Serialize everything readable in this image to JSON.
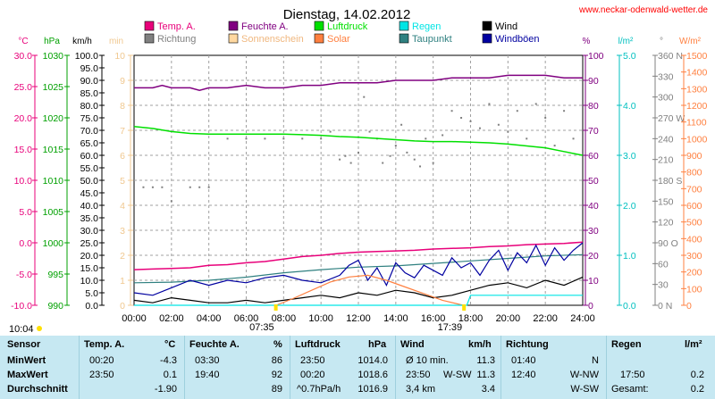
{
  "header": {
    "title": "Dienstag, 14.02.2012",
    "url": "www.neckar-odenwald-wetter.de"
  },
  "legend": [
    {
      "label": "Temp. A.",
      "color": "#e8007a"
    },
    {
      "label": "Feuchte A.",
      "color": "#800080"
    },
    {
      "label": "Luftdruck",
      "color": "#00e000"
    },
    {
      "label": "Regen",
      "color": "#00e5e5"
    },
    {
      "label": "Wind",
      "color": "#000000"
    },
    {
      "label": "Richtung",
      "color": "#808080"
    },
    {
      "label": "Sonnenschein",
      "color": "#ffd8a0"
    },
    {
      "label": "Solar",
      "color": "#ff8040"
    },
    {
      "label": "Taupunkt",
      "color": "#2f8080"
    },
    {
      "label": "Windböen",
      "color": "#0000a0"
    }
  ],
  "chart_data": {
    "type": "line",
    "x_ticks": [
      "00:00",
      "02:00",
      "04:00",
      "06:00",
      "08:00",
      "10:00",
      "12:00",
      "14:00",
      "16:00",
      "18:00",
      "20:00",
      "22:00",
      "24:00"
    ],
    "sunrise": "07:35",
    "sunset": "17:39",
    "daylength": "10:04",
    "axes": {
      "temp": {
        "unit": "°C",
        "color": "#e8007a",
        "ticks": [
          "30.0",
          "25.0",
          "20.0",
          "15.0",
          "10.0",
          "5.0",
          "0.0",
          "-5.0",
          "-10.0"
        ],
        "range": [
          -10,
          30
        ]
      },
      "pressure": {
        "unit": "hPa",
        "color": "#00a000",
        "ticks": [
          "1030",
          "1025",
          "1020",
          "1015",
          "1010",
          "1005",
          "1000",
          "995",
          "990"
        ],
        "range": [
          990,
          1030
        ]
      },
      "wind": {
        "unit": "km/h",
        "color": "#000000",
        "ticks": [
          "100.0",
          "95.0",
          "90.0",
          "85.0",
          "80.0",
          "75.0",
          "70.0",
          "65.0",
          "60.0",
          "55.0",
          "50.0",
          "45.0",
          "40.0",
          "35.0",
          "30.0",
          "25.0",
          "20.0",
          "15.0",
          "10.0",
          "5.0",
          "0.0"
        ],
        "range": [
          0,
          100
        ]
      },
      "sun": {
        "unit": "min",
        "color": "#ffd8a0",
        "ticks": [
          "10",
          "9",
          "8",
          "7",
          "6",
          "5",
          "4",
          "3",
          "2",
          "1",
          "0"
        ],
        "range": [
          0,
          10
        ]
      },
      "humidity": {
        "unit": "%",
        "color": "#800080",
        "ticks": [
          "100",
          "90",
          "80",
          "70",
          "60",
          "50",
          "40",
          "30",
          "20",
          "10",
          "0"
        ],
        "range": [
          0,
          100
        ]
      },
      "rain": {
        "unit": "l/m²",
        "color": "#00c0c0",
        "ticks": [
          "5.0",
          "4.0",
          "3.0",
          "2.0",
          "1.0",
          "0.0"
        ],
        "range": [
          0,
          5
        ]
      },
      "direction": {
        "unit": "°",
        "color": "#808080",
        "ticks": [
          "360 N",
          "330",
          "300",
          "270 W",
          "240",
          "210",
          "180 S",
          "150",
          "120",
          "90 O",
          "60",
          "30",
          "0 N"
        ],
        "range": [
          0,
          360
        ]
      },
      "solar": {
        "unit": "W/m²",
        "color": "#ff8040",
        "ticks": [
          "1500",
          "1400",
          "1300",
          "1200",
          "1100",
          "1000",
          "900",
          "800",
          "700",
          "600",
          "500",
          "400",
          "300",
          "200",
          "100",
          "0"
        ],
        "range": [
          0,
          1500
        ]
      }
    },
    "series": [
      {
        "name": "Feuchte A.",
        "axis": "humidity",
        "color": "#800080",
        "x": [
          0,
          0.5,
          1,
          1.5,
          2,
          2.5,
          3,
          3.5,
          4,
          5,
          6,
          7,
          8,
          9,
          10,
          11,
          12,
          13,
          14,
          15,
          16,
          17,
          18,
          19,
          20,
          21,
          22,
          23,
          24
        ],
        "y": [
          87,
          87,
          87,
          88,
          87,
          87,
          87,
          86,
          87,
          87,
          88,
          87,
          87,
          88,
          88,
          89,
          89,
          89,
          90,
          90,
          90,
          91,
          91,
          91,
          92,
          92,
          92,
          91,
          91
        ]
      },
      {
        "name": "Luftdruck",
        "axis": "pressure",
        "color": "#00e000",
        "x": [
          0,
          1,
          2,
          3,
          4,
          5,
          6,
          7,
          8,
          9,
          10,
          11,
          12,
          13,
          14,
          15,
          16,
          17,
          18,
          19,
          20,
          21,
          22,
          23,
          24
        ],
        "y": [
          1018.6,
          1018.3,
          1017.8,
          1017.5,
          1017.4,
          1017.4,
          1017.4,
          1017.4,
          1017.4,
          1017.3,
          1017.2,
          1017.0,
          1016.9,
          1016.7,
          1016.5,
          1016.3,
          1016.2,
          1016.2,
          1016.1,
          1016.0,
          1015.8,
          1015.5,
          1015.2,
          1014.6,
          1014.0
        ]
      },
      {
        "name": "Temp. A.",
        "axis": "temp",
        "color": "#e8007a",
        "x": [
          0,
          1,
          2,
          3,
          4,
          5,
          6,
          7,
          8,
          9,
          10,
          11,
          12,
          13,
          14,
          15,
          16,
          17,
          18,
          19,
          20,
          21,
          22,
          23,
          24
        ],
        "y": [
          -4.3,
          -4.2,
          -4.1,
          -4.0,
          -3.6,
          -3.5,
          -3.2,
          -3.0,
          -2.6,
          -2.2,
          -2.0,
          -1.7,
          -1.5,
          -1.4,
          -1.3,
          -1.2,
          -1.0,
          -0.9,
          -0.8,
          -0.6,
          -0.5,
          -0.3,
          -0.2,
          -0.1,
          0.1
        ]
      },
      {
        "name": "Taupunkt",
        "axis": "temp",
        "color": "#2f8080",
        "x": [
          0,
          2,
          4,
          6,
          8,
          10,
          12,
          14,
          16,
          18,
          20,
          22,
          24
        ],
        "y": [
          -6.4,
          -6.3,
          -6.0,
          -5.5,
          -4.8,
          -4.3,
          -3.9,
          -3.7,
          -3.3,
          -2.9,
          -2.5,
          -2.1,
          -1.9
        ]
      },
      {
        "name": "Windböen",
        "axis": "wind",
        "color": "#0000a0",
        "x": [
          0,
          1,
          2,
          3,
          4,
          5,
          6,
          7,
          8,
          9,
          10,
          11,
          11.5,
          12,
          12.5,
          13,
          13.5,
          14,
          14.5,
          15,
          15.5,
          16,
          16.5,
          17,
          17.5,
          18,
          18.5,
          19,
          19.5,
          20,
          20.5,
          21,
          21.5,
          22,
          22.5,
          23,
          23.5,
          24
        ],
        "y": [
          5,
          4,
          7,
          10,
          8,
          10,
          9,
          11,
          12,
          10,
          9,
          12,
          16,
          18,
          10,
          15,
          8,
          17,
          13,
          11,
          16,
          14,
          12,
          19,
          15,
          17,
          12,
          18,
          22,
          14,
          21,
          17,
          24,
          16,
          23,
          18,
          22,
          25
        ]
      },
      {
        "name": "Wind",
        "axis": "wind",
        "color": "#000000",
        "x": [
          0,
          1,
          2,
          3,
          4,
          5,
          6,
          7,
          8,
          9,
          10,
          11,
          12,
          13,
          14,
          15,
          16,
          17,
          18,
          19,
          20,
          21,
          22,
          23,
          24
        ],
        "y": [
          2,
          1,
          3,
          2,
          1,
          1,
          2,
          1,
          2,
          3,
          4,
          3,
          5,
          4,
          6,
          5,
          3,
          4,
          6,
          8,
          9,
          7,
          10,
          8,
          11.3
        ]
      },
      {
        "name": "Solar",
        "axis": "solar",
        "color": "#ff8040",
        "x": [
          7.6,
          8.5,
          9.5,
          10.5,
          11.5,
          12.5,
          13.5,
          14.5,
          15.5,
          16.5,
          17.6
        ],
        "y": [
          0,
          40,
          90,
          140,
          170,
          180,
          150,
          110,
          70,
          30,
          0
        ]
      },
      {
        "name": "Regen",
        "axis": "rain",
        "color": "#00e5e5",
        "x": [
          0,
          16.5,
          17.8,
          18,
          24
        ],
        "y": [
          0,
          0,
          0,
          0.2,
          0.2
        ]
      }
    ],
    "direction_points": {
      "x": [
        0,
        0.5,
        1,
        1.5,
        2,
        3,
        3.5,
        4,
        5,
        6,
        7,
        8,
        9,
        10,
        10.5,
        11,
        11.3,
        11.6,
        12,
        12.3,
        12.6,
        13,
        13.3,
        13.7,
        14,
        14.3,
        14.6,
        15,
        15.3,
        15.6,
        16,
        16.5,
        17,
        17.5,
        18,
        18.5,
        19,
        19.5,
        20,
        20.5,
        21,
        21.5,
        22,
        22.5,
        23,
        23.5,
        24
      ],
      "y": [
        170,
        170,
        170,
        170,
        150,
        170,
        170,
        170,
        240,
        240,
        240,
        240,
        240,
        240,
        250,
        210,
        215,
        205,
        220,
        300,
        250,
        240,
        205,
        215,
        230,
        260,
        220,
        210,
        200,
        240,
        205,
        245,
        280,
        270,
        265,
        255,
        290,
        260,
        250,
        280,
        240,
        290,
        270,
        230,
        280,
        240,
        250
      ]
    }
  },
  "stats": {
    "headers": {
      "sensor": "Sensor",
      "temp": "Temp. A.",
      "temp_unit": "°C",
      "hum": "Feuchte A.",
      "hum_unit": "%",
      "press": "Luftdruck",
      "press_unit": "hPa",
      "wind": "Wind",
      "wind_unit": "km/h",
      "dir": "Richtung",
      "rain": "Regen",
      "rain_unit": "l/m²"
    },
    "min": {
      "label": "MinWert",
      "temp_time": "00:20",
      "temp_val": "-4.3",
      "hum_time": "03:30",
      "hum_val": "86",
      "press_time": "23:50",
      "press_val": "1014.0",
      "wind_time": "Ø 10 min.",
      "wind_val": "11.3",
      "dir_time": "01:40",
      "dir_val": "N",
      "rain_time": "",
      "rain_val": ""
    },
    "max": {
      "label": "MaxWert",
      "temp_time": "23:50",
      "temp_val": "0.1",
      "hum_time": "19:40",
      "hum_val": "92",
      "press_time": "00:20",
      "press_val": "1018.6",
      "wind_time": "23:50",
      "wind_dir": "W-SW",
      "wind_val": "11.3",
      "dir_time": "12:40",
      "dir_val": "W-NW",
      "rain_time": "17:50",
      "rain_val": "0.2"
    },
    "avg": {
      "label": "Durchschnitt",
      "temp_time": "",
      "temp_val": "-1.90",
      "hum_time": "",
      "hum_val": "89",
      "press_time": "^0.7hPa/h",
      "press_val": "1016.9",
      "wind_time": "3,4 km",
      "wind_val": "3.4",
      "dir_time": "",
      "dir_val": "W-SW",
      "rain_time": "Gesamt:",
      "rain_val": "0.2"
    }
  }
}
